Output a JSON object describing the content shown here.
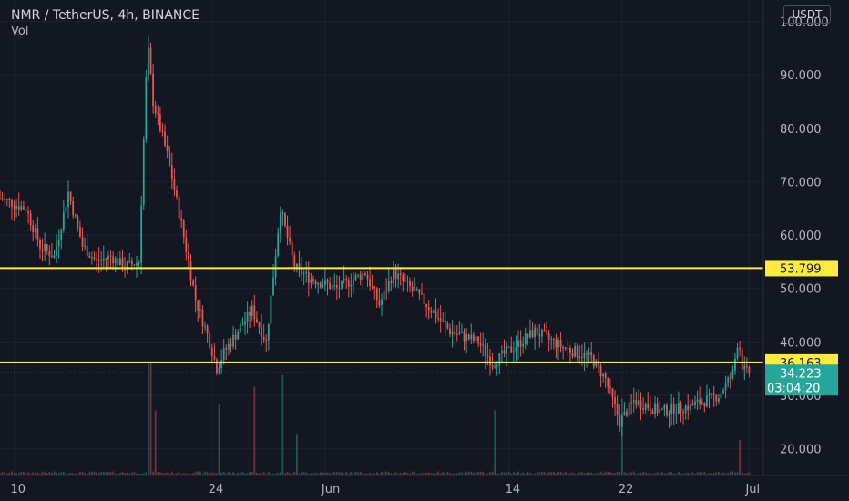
{
  "header": {
    "symbol": "NMR / TetherUS, 4h, BINANCE",
    "indicator": "Vol"
  },
  "currency_button": "USDT",
  "levels": [
    {
      "value": 53.799,
      "label": "53.799",
      "color": "#ffeb3b"
    },
    {
      "value": 36.163,
      "label": "36.163",
      "color": "#ffeb3b"
    }
  ],
  "current_price": {
    "value": 34.223,
    "label": "34.223",
    "countdown": "03:04:20",
    "color": "#26a69a"
  },
  "colors": {
    "up": "#26a69a",
    "down": "#ef5350",
    "background": "#131722",
    "grid": "#1e2230"
  },
  "chart_data": {
    "type": "candlestick",
    "ylim": [
      15,
      104
    ],
    "y_ticks": [
      "20.000",
      "30.000",
      "40.000",
      "50.000",
      "60.000",
      "70.000",
      "80.000",
      "90.000",
      "100.000"
    ],
    "y_tick_values": [
      20,
      30,
      40,
      50,
      60,
      70,
      80,
      90,
      100
    ],
    "x_ticks": [
      {
        "label": "10",
        "date": "2021-05-10"
      },
      {
        "label": "24",
        "date": "2021-05-24"
      },
      {
        "label": "Jun",
        "date": "2021-06-01"
      },
      {
        "label": "14",
        "date": "2021-06-14"
      },
      {
        "label": "22",
        "date": "2021-06-22"
      },
      {
        "label": "Jul",
        "date": "2021-07-01"
      }
    ],
    "xlim": [
      "2021-05-09",
      "2021-07-02"
    ],
    "close_path": [
      [
        "2021-05-09",
        67
      ],
      [
        "2021-05-11",
        65
      ],
      [
        "2021-05-12",
        58
      ],
      [
        "2021-05-13",
        56
      ],
      [
        "2021-05-14",
        68
      ],
      [
        "2021-05-15",
        58
      ],
      [
        "2021-05-16",
        55
      ],
      [
        "2021-05-17",
        56
      ],
      [
        "2021-05-18",
        54
      ],
      [
        "2021-05-19",
        55
      ],
      [
        "2021-05-19.6",
        96
      ],
      [
        "2021-05-20",
        85
      ],
      [
        "2021-05-21",
        75
      ],
      [
        "2021-05-22",
        62
      ],
      [
        "2021-05-23",
        48
      ],
      [
        "2021-05-24",
        40
      ],
      [
        "2021-05-24.5",
        35
      ],
      [
        "2021-05-25",
        38
      ],
      [
        "2021-05-26",
        42
      ],
      [
        "2021-05-27",
        46
      ],
      [
        "2021-05-28",
        40
      ],
      [
        "2021-05-29",
        65
      ],
      [
        "2021-05-30",
        54
      ],
      [
        "2021-05-31",
        52
      ],
      [
        "2021-06-02",
        50
      ],
      [
        "2021-06-04",
        53
      ],
      [
        "2021-06-05",
        47
      ],
      [
        "2021-06-06",
        53
      ],
      [
        "2021-06-08",
        48
      ],
      [
        "2021-06-10",
        42
      ],
      [
        "2021-06-12",
        40
      ],
      [
        "2021-06-13",
        36
      ],
      [
        "2021-06-14",
        38
      ],
      [
        "2021-06-16",
        42
      ],
      [
        "2021-06-18",
        39
      ],
      [
        "2021-06-20",
        37
      ],
      [
        "2021-06-21",
        33
      ],
      [
        "2021-06-22",
        25
      ],
      [
        "2021-06-23",
        29
      ],
      [
        "2021-06-25",
        27
      ],
      [
        "2021-06-27",
        28
      ],
      [
        "2021-06-29",
        30
      ],
      [
        "2021-06-30",
        34
      ],
      [
        "2021-06-30.4",
        41
      ],
      [
        "2021-06-30.7",
        35
      ],
      [
        "2021-07-01",
        34.223
      ]
    ],
    "volume_spikes": [
      [
        "2021-05-19.6",
        0.95
      ],
      [
        "2021-05-20",
        0.55
      ],
      [
        "2021-05-24.5",
        0.6
      ],
      [
        "2021-05-27",
        0.75
      ],
      [
        "2021-05-29",
        0.85
      ],
      [
        "2021-05-30",
        0.35
      ],
      [
        "2021-06-13",
        0.55
      ],
      [
        "2021-06-22",
        0.65
      ],
      [
        "2021-06-30.4",
        0.3
      ]
    ]
  }
}
